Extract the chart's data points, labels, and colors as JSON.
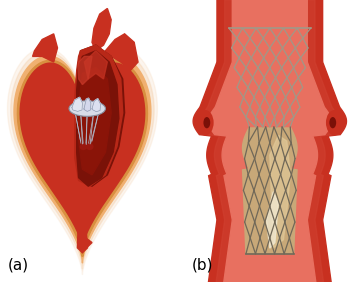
{
  "label_a": "(a)",
  "label_b": "(b)",
  "label_fontsize": 11,
  "background_color": "#ffffff",
  "fig_width": 3.55,
  "fig_height": 2.82,
  "dpi": 100,
  "heart": {
    "outer_perim": "#f5c090",
    "outer_fill": "#f0b878",
    "main_red": "#c83020",
    "dark_chamber": "#7a1208",
    "medium_red": "#b02818",
    "inner_red": "#a02010",
    "cut_fill": "#c03828",
    "left_wall": "#d84030",
    "aorta_red": "#c03020",
    "vessel_pink": "#e07060",
    "valve_white": "#e8eaf0",
    "valve_gray": "#c8cad4",
    "valve_dark": "#9098a8",
    "chord_color": "#b0b8c8"
  },
  "valve": {
    "bg": "#ffffff",
    "vessel_outer": "#c83020",
    "vessel_inner_top": "#e86858",
    "vessel_inner_bot": "#e05040",
    "lumen_pink": "#e87060",
    "stent_silver": "#a09888",
    "stent_dark": "#706858",
    "leaflet_tan": "#c8a878",
    "leaflet_light": "#e0c898",
    "leaflet_white": "#f0e8d0",
    "leaflet_dark": "#a88848",
    "bump_dark": "#8b1a0a",
    "bump_red": "#c03020"
  }
}
